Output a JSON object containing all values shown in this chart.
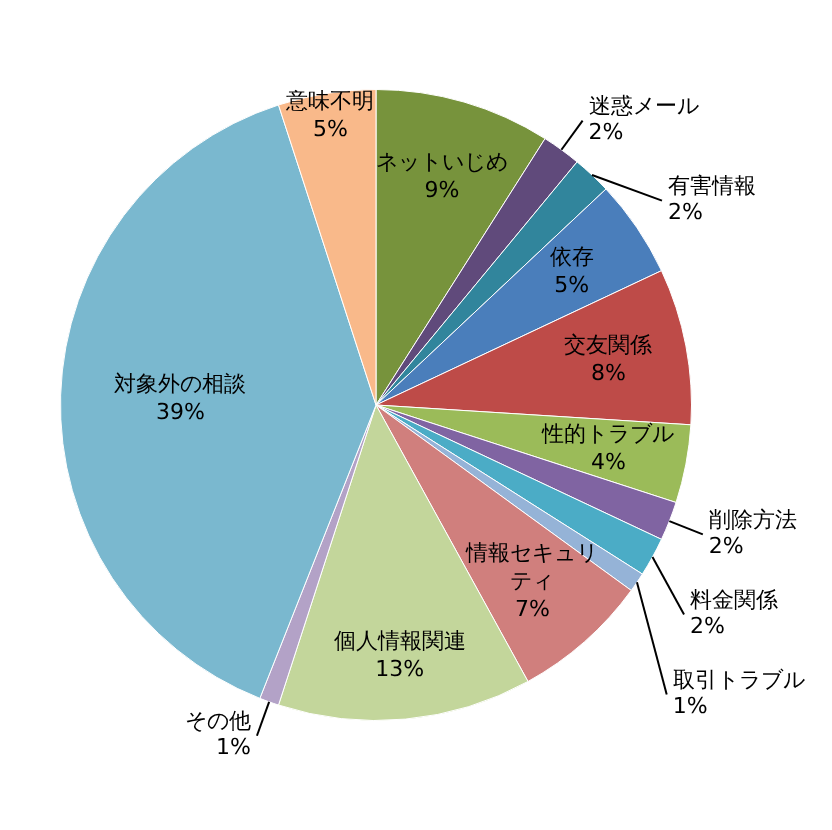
{
  "chart_data": {
    "type": "pie",
    "categories": [
      "ネットいじめ",
      "迷惑メール",
      "有害情報",
      "依存",
      "交友関係",
      "性的トラブル",
      "削除方法",
      "料金関係",
      "取引トラブル",
      "情報セキュリティ",
      "個人情報関連",
      "その他",
      "対象外の相談",
      "意味不明"
    ],
    "values": [
      9,
      2,
      2,
      5,
      8,
      4,
      2,
      2,
      1,
      7,
      13,
      1,
      39,
      5
    ],
    "value_labels": [
      "9%",
      "2%",
      "2%",
      "5%",
      "8%",
      "4%",
      "2%",
      "2%",
      "1%",
      "7%",
      "13%",
      "1%",
      "39%",
      "5%"
    ],
    "colors": [
      "#77933c",
      "#604a7b",
      "#31859c",
      "#4a7ebb",
      "#be4b48",
      "#9bbb59",
      "#8064a2",
      "#4bacc6",
      "#95b3d7",
      "#d07f7d",
      "#c3d69b",
      "#b3a2c7",
      "#7ab8cf",
      "#f9b98a"
    ],
    "legend": false
  }
}
